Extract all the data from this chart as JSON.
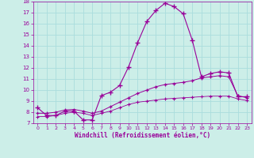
{
  "xlabel": "Windchill (Refroidissement éolien,°C)",
  "background_color": "#cceee8",
  "grid_color": "#aadddd",
  "line_color": "#990099",
  "xlim": [
    -0.5,
    23.5
  ],
  "ylim": [
    7,
    18
  ],
  "yticks": [
    7,
    8,
    9,
    10,
    11,
    12,
    13,
    14,
    15,
    16,
    17,
    18
  ],
  "xticks": [
    0,
    1,
    2,
    3,
    4,
    5,
    6,
    7,
    8,
    9,
    10,
    11,
    12,
    13,
    14,
    15,
    16,
    17,
    18,
    19,
    20,
    21,
    22,
    23
  ],
  "series1_x": [
    0,
    1,
    2,
    3,
    4,
    5,
    6,
    7,
    8,
    9,
    10,
    11,
    12,
    13,
    14,
    15,
    16,
    17,
    18,
    19,
    20,
    21,
    22,
    23
  ],
  "series1_y": [
    8.4,
    7.7,
    7.7,
    8.1,
    8.1,
    7.3,
    7.3,
    9.5,
    9.8,
    10.4,
    12.1,
    14.3,
    16.2,
    17.2,
    17.85,
    17.55,
    16.9,
    14.5,
    11.2,
    11.5,
    11.65,
    11.55,
    9.4,
    9.4
  ],
  "series2_x": [
    0,
    1,
    2,
    3,
    4,
    5,
    6,
    7,
    8,
    9,
    10,
    11,
    12,
    13,
    14,
    15,
    16,
    17,
    18,
    19,
    20,
    21,
    22,
    23
  ],
  "series2_y": [
    7.9,
    7.9,
    8.0,
    8.2,
    8.25,
    8.1,
    7.9,
    8.1,
    8.5,
    8.9,
    9.3,
    9.7,
    10.0,
    10.3,
    10.5,
    10.6,
    10.7,
    10.85,
    11.1,
    11.2,
    11.3,
    11.2,
    9.5,
    9.3
  ],
  "series3_x": [
    0,
    1,
    2,
    3,
    4,
    5,
    6,
    7,
    8,
    9,
    10,
    11,
    12,
    13,
    14,
    15,
    16,
    17,
    18,
    19,
    20,
    21,
    22,
    23
  ],
  "series3_y": [
    7.6,
    7.6,
    7.7,
    7.9,
    8.0,
    7.9,
    7.7,
    7.9,
    8.1,
    8.4,
    8.7,
    8.9,
    9.0,
    9.1,
    9.2,
    9.25,
    9.3,
    9.35,
    9.4,
    9.45,
    9.45,
    9.45,
    9.2,
    9.05
  ]
}
